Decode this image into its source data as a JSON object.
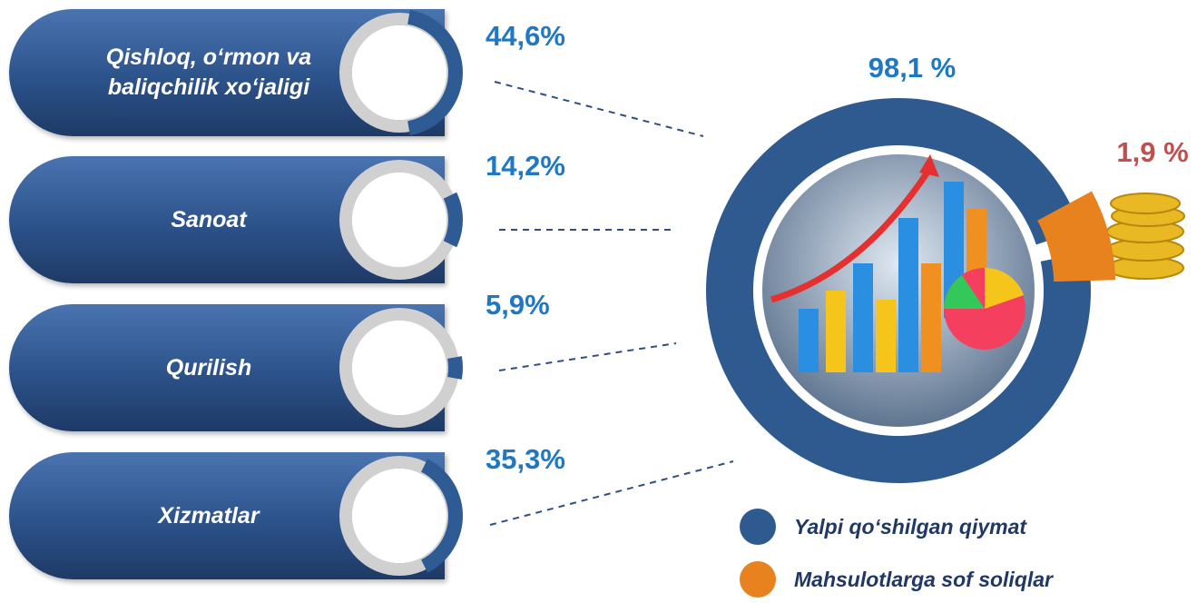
{
  "chart_data": [
    {
      "type": "sector-shares",
      "categories": [
        "Qishloq, o‘rmon va baliqchilik xo‘jaligi",
        "Sanoat",
        "Qurilish",
        "Xizmatlar"
      ],
      "values": [
        44.6,
        14.2,
        5.9,
        35.3
      ],
      "value_labels": [
        "44,6%",
        "14,2%",
        "5,9%",
        "35,3%"
      ],
      "color": "#2f5b94"
    },
    {
      "type": "donut",
      "categories": [
        "Yalpi qo‘shilgan qiymat",
        "Mahsulotlarga sof soliqlar"
      ],
      "values": [
        98.1,
        1.9
      ],
      "value_labels": [
        "98,1 %",
        "1,9 %"
      ],
      "colors": [
        "#2e5a8f",
        "#e8821e"
      ],
      "label_colors": [
        "#1f78c1",
        "#c0504d"
      ]
    }
  ]
}
